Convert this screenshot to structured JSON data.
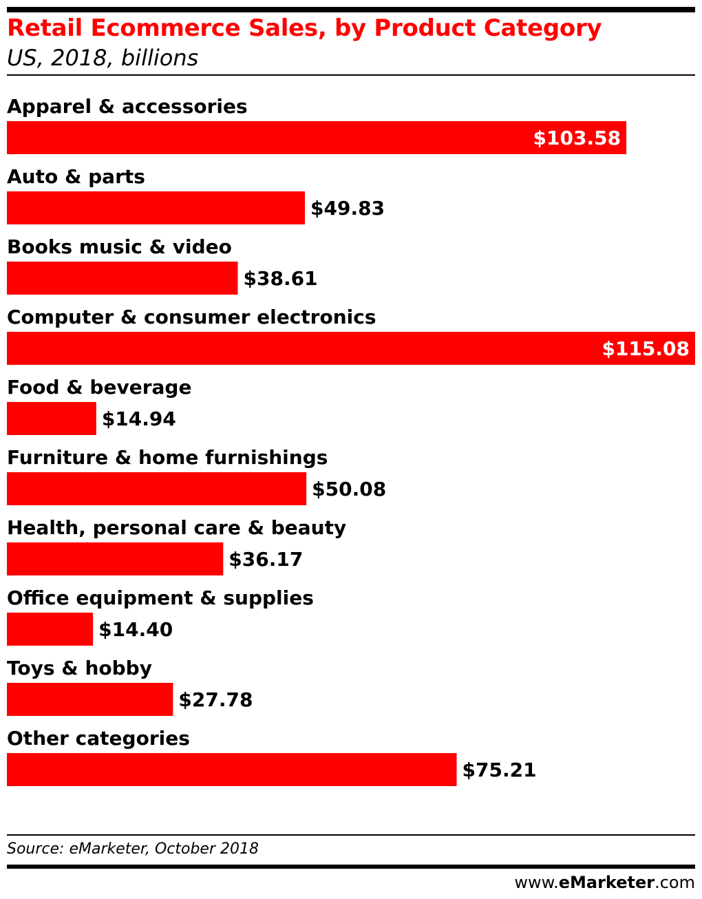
{
  "header": {
    "title": "Retail Ecommerce Sales, by Product Category",
    "subtitle": "US, 2018, billions"
  },
  "footer": {
    "source": "Source: eMarketer, October 2018",
    "brand_prefix": "www.",
    "brand_name": "eMarketer",
    "brand_suffix": ".com"
  },
  "colors": {
    "bar": "#ff0000",
    "title": "#ff0000",
    "inside_label": "#ffffff",
    "outside_label": "#000000"
  },
  "chart_data": {
    "type": "bar",
    "orientation": "horizontal",
    "title": "Retail Ecommerce Sales, by Product Category",
    "subtitle": "US, 2018, billions",
    "categories": [
      "Apparel & accessories",
      "Auto & parts",
      "Books music & video",
      "Computer & consumer electronics",
      "Food & beverage",
      "Furniture & home furnishings",
      "Health, personal care & beauty",
      "Office equipment & supplies",
      "Toys & hobby",
      "Other categories"
    ],
    "values": [
      103.58,
      49.83,
      38.61,
      115.08,
      14.94,
      50.08,
      36.17,
      14.4,
      27.78,
      75.21
    ],
    "value_labels": [
      "$103.58",
      "$49.83",
      "$38.61",
      "$115.08",
      "$14.94",
      "$50.08",
      "$36.17",
      "$14.40",
      "$27.78",
      "$75.21"
    ],
    "xlim": [
      0,
      115.08
    ],
    "grid": false,
    "legend": "none"
  }
}
